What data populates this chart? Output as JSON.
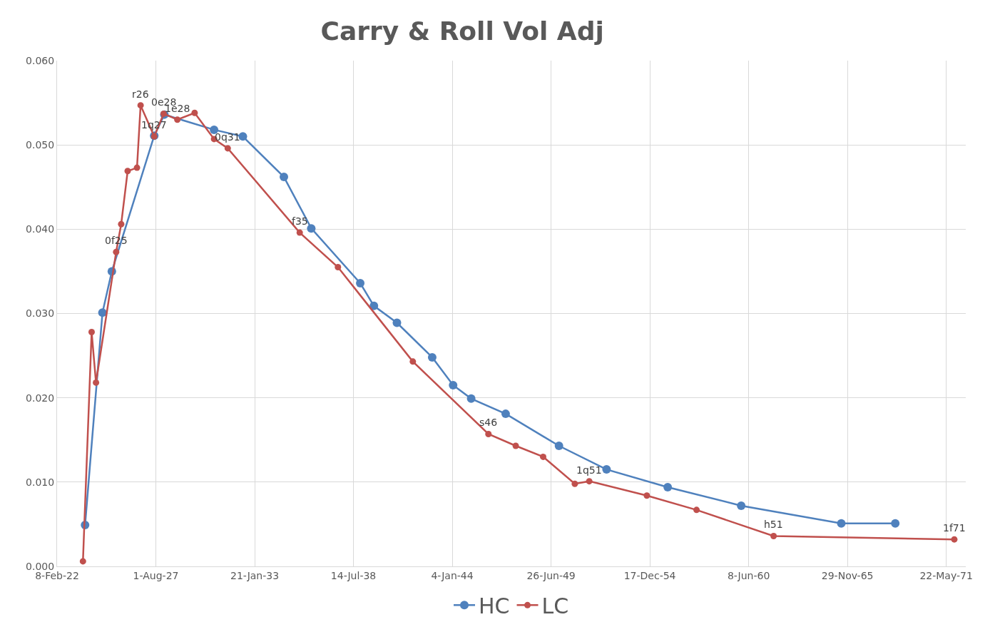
{
  "chart_data": {
    "type": "line",
    "title": "Carry & Roll Vol Adj",
    "xlim": [
      "2022-02-08",
      "2072-06-20"
    ],
    "xticks": [
      {
        "value": "2022-02-08",
        "label": "8-Feb-22"
      },
      {
        "value": "2027-08-01",
        "label": "1-Aug-27"
      },
      {
        "value": "2033-01-21",
        "label": "21-Jan-33"
      },
      {
        "value": "2038-07-14",
        "label": "14-Jul-38"
      },
      {
        "value": "2044-01-04",
        "label": "4-Jan-44"
      },
      {
        "value": "2049-06-26",
        "label": "26-Jun-49"
      },
      {
        "value": "2054-12-17",
        "label": "17-Dec-54"
      },
      {
        "value": "2060-06-08",
        "label": "8-Jun-60"
      },
      {
        "value": "2065-11-29",
        "label": "29-Nov-65"
      },
      {
        "value": "2071-05-22",
        "label": "22-May-71"
      }
    ],
    "ylim": [
      0,
      0.06
    ],
    "yticks": [
      {
        "value": 0,
        "label": "0.000"
      },
      {
        "value": 0.01,
        "label": "0.010"
      },
      {
        "value": 0.02,
        "label": "0.020"
      },
      {
        "value": 0.03,
        "label": "0.030"
      },
      {
        "value": 0.04,
        "label": "0.040"
      },
      {
        "value": 0.05,
        "label": "0.050"
      },
      {
        "value": 0.06,
        "label": "0.060"
      }
    ],
    "grid": true,
    "legend": "bottom",
    "marker": "circle",
    "line_style": "solid",
    "series": [
      {
        "name": "HC",
        "color": "#4f81bd",
        "x": [
          "2023-08-29",
          "2024-08-15",
          "2025-02-21",
          "2027-06-29",
          "2028-01-20",
          "2030-10-22",
          "2032-05-27",
          "2034-09-05",
          "2036-03-12",
          "2038-11-28",
          "2039-09-01",
          "2040-12-10",
          "2042-11-24",
          "2044-01-21",
          "2045-01-21",
          "2046-12-20",
          "2049-12-03",
          "2052-07-23",
          "2055-12-13",
          "2060-01-09",
          "2065-07-27",
          "2068-07-24"
        ],
        "values": [
          0.0049,
          0.0301,
          0.035,
          0.0511,
          0.0536,
          0.0518,
          0.051,
          0.0462,
          0.0401,
          0.0336,
          0.0309,
          0.0289,
          0.0248,
          0.0215,
          0.0199,
          0.0181,
          0.0143,
          0.0115,
          0.0094,
          0.0072,
          0.0051,
          0.0051
        ]
      },
      {
        "name": "LC",
        "color": "#c0504d",
        "x": [
          "2023-07-17",
          "2024-01-09",
          "2024-04-06",
          "2025-05-19",
          "2025-08-29",
          "2026-01-07",
          "2026-07-15",
          "2026-09-26",
          "2027-06-29",
          "2028-01-06",
          "2028-10-09",
          "2029-09-24",
          "2030-10-22",
          "2031-07-26",
          "2035-07-22",
          "2037-09-03",
          "2041-10-28",
          "2046-01-05",
          "2047-07-12",
          "2049-01-17",
          "2050-10-20",
          "2051-08-08",
          "2054-10-17",
          "2057-07-19",
          "2061-10-26",
          "2071-11-01"
        ],
        "values": [
          0.0006,
          0.0278,
          0.0218,
          0.0373,
          0.0406,
          0.0469,
          0.0473,
          0.0547,
          0.051,
          0.0537,
          0.053,
          0.0538,
          0.0507,
          0.0496,
          0.0396,
          0.0355,
          0.0243,
          0.0157,
          0.0143,
          0.013,
          0.0098,
          0.0101,
          0.0084,
          0.0067,
          0.0036,
          0.0032
        ]
      }
    ],
    "annotations": [
      {
        "text": "0f25",
        "x": "2025-05-19",
        "y": 0.0373
      },
      {
        "text": "r26",
        "x": "2026-09-26",
        "y": 0.0547
      },
      {
        "text": "1q27",
        "x": "2027-06-29",
        "y": 0.051
      },
      {
        "text": "0e28",
        "x": "2028-01-06",
        "y": 0.0537
      },
      {
        "text": "1e28",
        "x": "2028-10-09",
        "y": 0.053
      },
      {
        "text": "0q31",
        "x": "2031-07-26",
        "y": 0.0496
      },
      {
        "text": "f35",
        "x": "2035-07-22",
        "y": 0.0396
      },
      {
        "text": "s46",
        "x": "2046-01-05",
        "y": 0.0157
      },
      {
        "text": "1q51",
        "x": "2051-08-08",
        "y": 0.0101
      },
      {
        "text": "h51",
        "x": "2061-10-26",
        "y": 0.0036
      },
      {
        "text": "1f71",
        "x": "2071-11-01",
        "y": 0.0032
      }
    ]
  }
}
